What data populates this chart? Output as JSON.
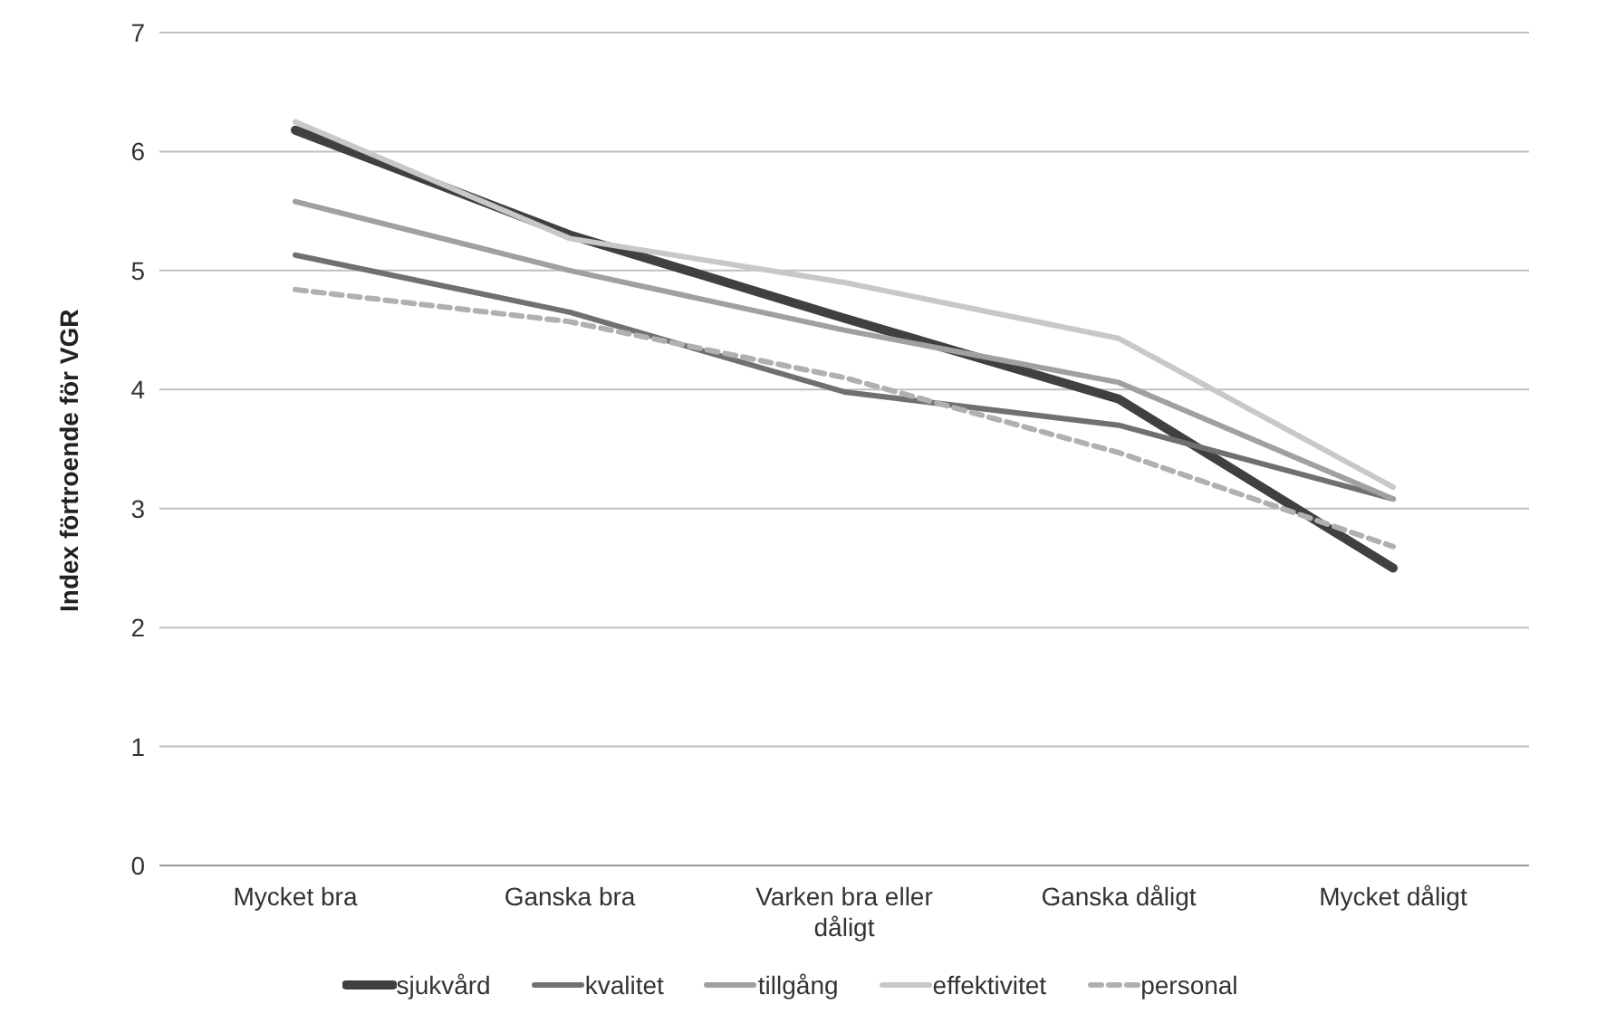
{
  "chart_data": {
    "type": "line",
    "ylabel": "Index förtroende för  VGR",
    "categories": [
      "Mycket bra",
      "Ganska bra",
      "Varken bra eller dåligt",
      "Ganska dåligt",
      "Mycket dåligt"
    ],
    "series": [
      {
        "name": "sjukvård",
        "color": "#404040",
        "values": [
          6.18,
          5.3,
          4.6,
          3.92,
          2.5
        ]
      },
      {
        "name": "kvalitet",
        "color": "#707070",
        "values": [
          5.13,
          4.65,
          3.98,
          3.7,
          3.08
        ]
      },
      {
        "name": "tillgång",
        "color": "#a0a0a0",
        "values": [
          5.58,
          5.0,
          4.5,
          4.06,
          3.08
        ]
      },
      {
        "name": "effektivitet",
        "color": "#c8c8c8",
        "values": [
          6.25,
          5.27,
          4.9,
          4.43,
          3.18
        ]
      },
      {
        "name": "personal",
        "color": "#b0b0b0",
        "line_style": "dashed",
        "values": [
          4.84,
          4.57,
          4.1,
          3.47,
          2.68
        ]
      }
    ],
    "ylim": [
      0,
      7
    ],
    "yticks": [
      0,
      1,
      2,
      3,
      4,
      5,
      6,
      7
    ],
    "grid": "y",
    "legend": "bottom",
    "marker": "none"
  }
}
